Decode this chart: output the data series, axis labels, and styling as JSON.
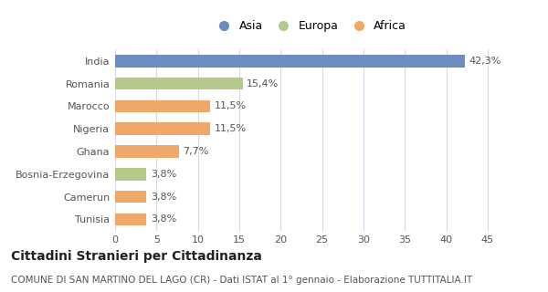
{
  "categories": [
    "Tunisia",
    "Camerun",
    "Bosnia-Erzegovina",
    "Ghana",
    "Nigeria",
    "Marocco",
    "Romania",
    "India"
  ],
  "values": [
    3.8,
    3.8,
    3.8,
    7.7,
    11.5,
    11.5,
    15.4,
    42.3
  ],
  "labels": [
    "3,8%",
    "3,8%",
    "3,8%",
    "7,7%",
    "11,5%",
    "11,5%",
    "15,4%",
    "42,3%"
  ],
  "colors": [
    "#f0a868",
    "#f0a868",
    "#b5c98a",
    "#f0a868",
    "#f0a868",
    "#f0a868",
    "#b5c98a",
    "#6d8dc0"
  ],
  "legend": [
    {
      "label": "Asia",
      "color": "#6d8dc0"
    },
    {
      "label": "Europa",
      "color": "#b5c98a"
    },
    {
      "label": "Africa",
      "color": "#f0a868"
    }
  ],
  "xlim": [
    0,
    47
  ],
  "xticks": [
    0,
    5,
    10,
    15,
    20,
    25,
    30,
    35,
    40,
    45
  ],
  "title": "Cittadini Stranieri per Cittadinanza",
  "subtitle": "COMUNE DI SAN MARTINO DEL LAGO (CR) - Dati ISTAT al 1° gennaio - Elaborazione TUTTITALIA.IT",
  "background_color": "#ffffff",
  "grid_color": "#d8d8e8",
  "bar_height": 0.55,
  "title_fontsize": 10,
  "subtitle_fontsize": 7.5,
  "label_fontsize": 8,
  "tick_fontsize": 8,
  "legend_fontsize": 9
}
